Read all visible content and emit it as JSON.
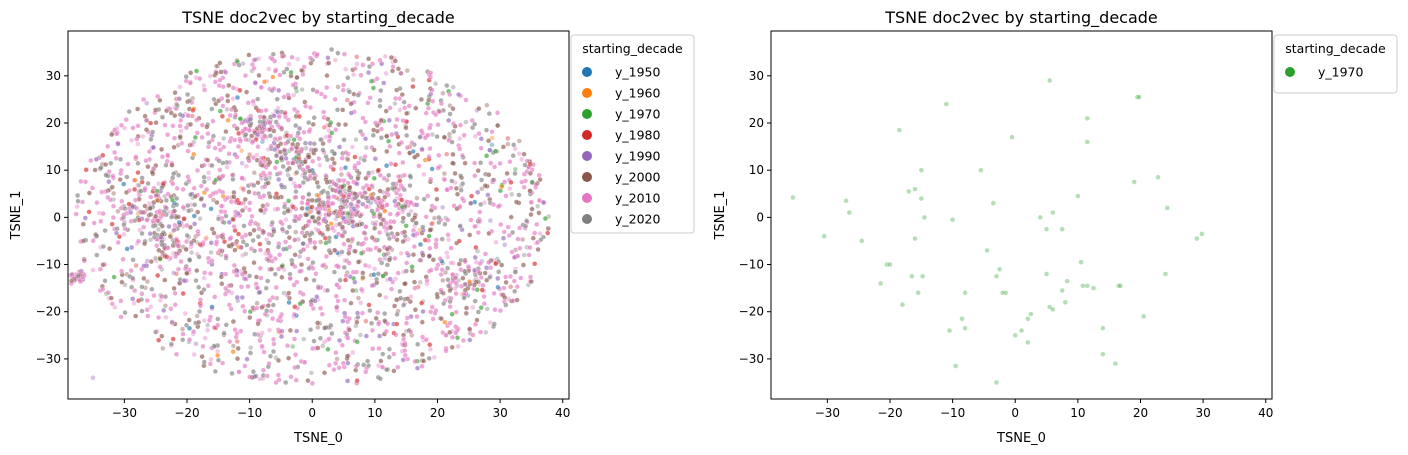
{
  "chart_data": [
    {
      "type": "scatter",
      "title": "TSNE doc2vec by starting_decade",
      "xlabel": "TSNE_0",
      "ylabel": "TSNE_1",
      "xlim": [
        -39,
        41
      ],
      "ylim": [
        -38.5,
        39.5
      ],
      "xticks": [
        -30,
        -20,
        -10,
        0,
        10,
        20,
        30,
        40
      ],
      "yticks": [
        -30,
        -20,
        -10,
        0,
        10,
        20,
        30
      ],
      "legend": {
        "title": "starting_decade",
        "placement": "outside upper right",
        "entries": [
          {
            "label": "y_1950",
            "color": "#1f77b4"
          },
          {
            "label": "y_1960",
            "color": "#ff7f0e"
          },
          {
            "label": "y_1970",
            "color": "#2ca02c"
          },
          {
            "label": "y_1980",
            "color": "#d62728"
          },
          {
            "label": "y_1990",
            "color": "#9467bd"
          },
          {
            "label": "y_2000",
            "color": "#8c564b"
          },
          {
            "label": "y_2010",
            "color": "#e377c2"
          },
          {
            "label": "y_2020",
            "color": "#7f7f7f"
          }
        ]
      },
      "point_summary": {
        "approx_points": 5200,
        "distribution": "dense roughly circular cloud centered near (0, 0) with radius about 35",
        "clusters": [
          {
            "x": -37.5,
            "y": -12.8,
            "note": "tight grey/pink cluster"
          },
          {
            "x": 25,
            "y": -13
          },
          {
            "x": -22,
            "y": -6
          },
          {
            "x": -25,
            "y": 2
          },
          {
            "x": -8,
            "y": 20
          },
          {
            "x": 11,
            "y": 3
          },
          {
            "x": -3,
            "y": 14
          },
          {
            "x": 4,
            "y": 4
          }
        ],
        "outliers": [
          {
            "x": -35,
            "y": -34
          }
        ],
        "series_mix": [
          {
            "name": "y_2010",
            "share": 0.44
          },
          {
            "name": "y_2020",
            "share": 0.2
          },
          {
            "name": "y_2000",
            "share": 0.22
          },
          {
            "name": "y_1990",
            "share": 0.06
          },
          {
            "name": "y_1980",
            "share": 0.04
          },
          {
            "name": "y_1970",
            "share": 0.02
          },
          {
            "name": "y_1960",
            "share": 0.01
          },
          {
            "name": "y_1950",
            "share": 0.01
          }
        ]
      },
      "point_color_alpha": 0.4
    },
    {
      "type": "scatter",
      "title": "TSNE doc2vec by starting_decade",
      "xlabel": "TSNE_0",
      "ylabel": "TSNE_1",
      "xlim": [
        -39,
        41
      ],
      "ylim": [
        -38.5,
        39.5
      ],
      "xticks": [
        -30,
        -20,
        -10,
        0,
        10,
        20,
        30,
        40
      ],
      "yticks": [
        -30,
        -20,
        -10,
        0,
        10,
        20,
        30
      ],
      "legend": {
        "title": "starting_decade",
        "placement": "outside upper right",
        "entries": [
          {
            "label": "y_1970",
            "color": "#2ca02c"
          }
        ]
      },
      "series": [
        {
          "name": "y_1970",
          "color": "#2ca02c",
          "points": [
            [
              5.5,
              29
            ],
            [
              19.5,
              25.5
            ],
            [
              19.8,
              25.5
            ],
            [
              -11,
              24
            ],
            [
              11.5,
              21
            ],
            [
              -18.5,
              18.5
            ],
            [
              -0.5,
              17
            ],
            [
              11.5,
              16
            ],
            [
              -15,
              10
            ],
            [
              -5.5,
              10
            ],
            [
              22.8,
              8.5
            ],
            [
              19,
              7.5
            ],
            [
              -16,
              6
            ],
            [
              -17,
              5.5
            ],
            [
              10,
              4.5
            ],
            [
              -15,
              4
            ],
            [
              -27,
              3.5
            ],
            [
              -3.5,
              3
            ],
            [
              24.3,
              2
            ],
            [
              -26.5,
              1
            ],
            [
              -14.5,
              0
            ],
            [
              4,
              0
            ],
            [
              -10,
              -0.5
            ],
            [
              6,
              1
            ],
            [
              -35.5,
              4.2
            ],
            [
              -30.5,
              -4
            ],
            [
              -24.5,
              -5
            ],
            [
              -16,
              -4.5
            ],
            [
              5,
              -2.5
            ],
            [
              7.5,
              -2.5
            ],
            [
              29.8,
              -3.5
            ],
            [
              29,
              -4.5
            ],
            [
              -20.5,
              -10
            ],
            [
              -20,
              -10
            ],
            [
              -4.5,
              -7
            ],
            [
              -3,
              -12.5
            ],
            [
              -16.5,
              -12.5
            ],
            [
              -14.8,
              -12.5
            ],
            [
              -2.5,
              -11
            ],
            [
              5,
              -12
            ],
            [
              10.5,
              -9.5
            ],
            [
              24,
              -12
            ],
            [
              -21.5,
              -14
            ],
            [
              8.3,
              -13.5
            ],
            [
              10.8,
              -14.5
            ],
            [
              11.5,
              -14.5
            ],
            [
              12.5,
              -15
            ],
            [
              16.5,
              -14.5
            ],
            [
              16.8,
              -14.5
            ],
            [
              -15.5,
              -16
            ],
            [
              -1.5,
              -16
            ],
            [
              -2,
              -16
            ],
            [
              -8,
              -16
            ],
            [
              -8.5,
              -21.5
            ],
            [
              -8,
              -23.5
            ],
            [
              -18,
              -18.5
            ],
            [
              7.5,
              -15.5
            ],
            [
              5.5,
              -19
            ],
            [
              6,
              -19.5
            ],
            [
              8,
              -18
            ],
            [
              2.5,
              -20.5
            ],
            [
              2,
              -21.5
            ],
            [
              20.5,
              -21
            ],
            [
              14,
              -23.5
            ],
            [
              -10.5,
              -24
            ],
            [
              0,
              -25
            ],
            [
              1,
              -24
            ],
            [
              2,
              -26.5
            ],
            [
              14,
              -29
            ],
            [
              -9.5,
              -31.5
            ],
            [
              16,
              -31
            ],
            [
              -3,
              -35
            ]
          ]
        }
      ],
      "point_color_alpha": 0.35
    }
  ]
}
